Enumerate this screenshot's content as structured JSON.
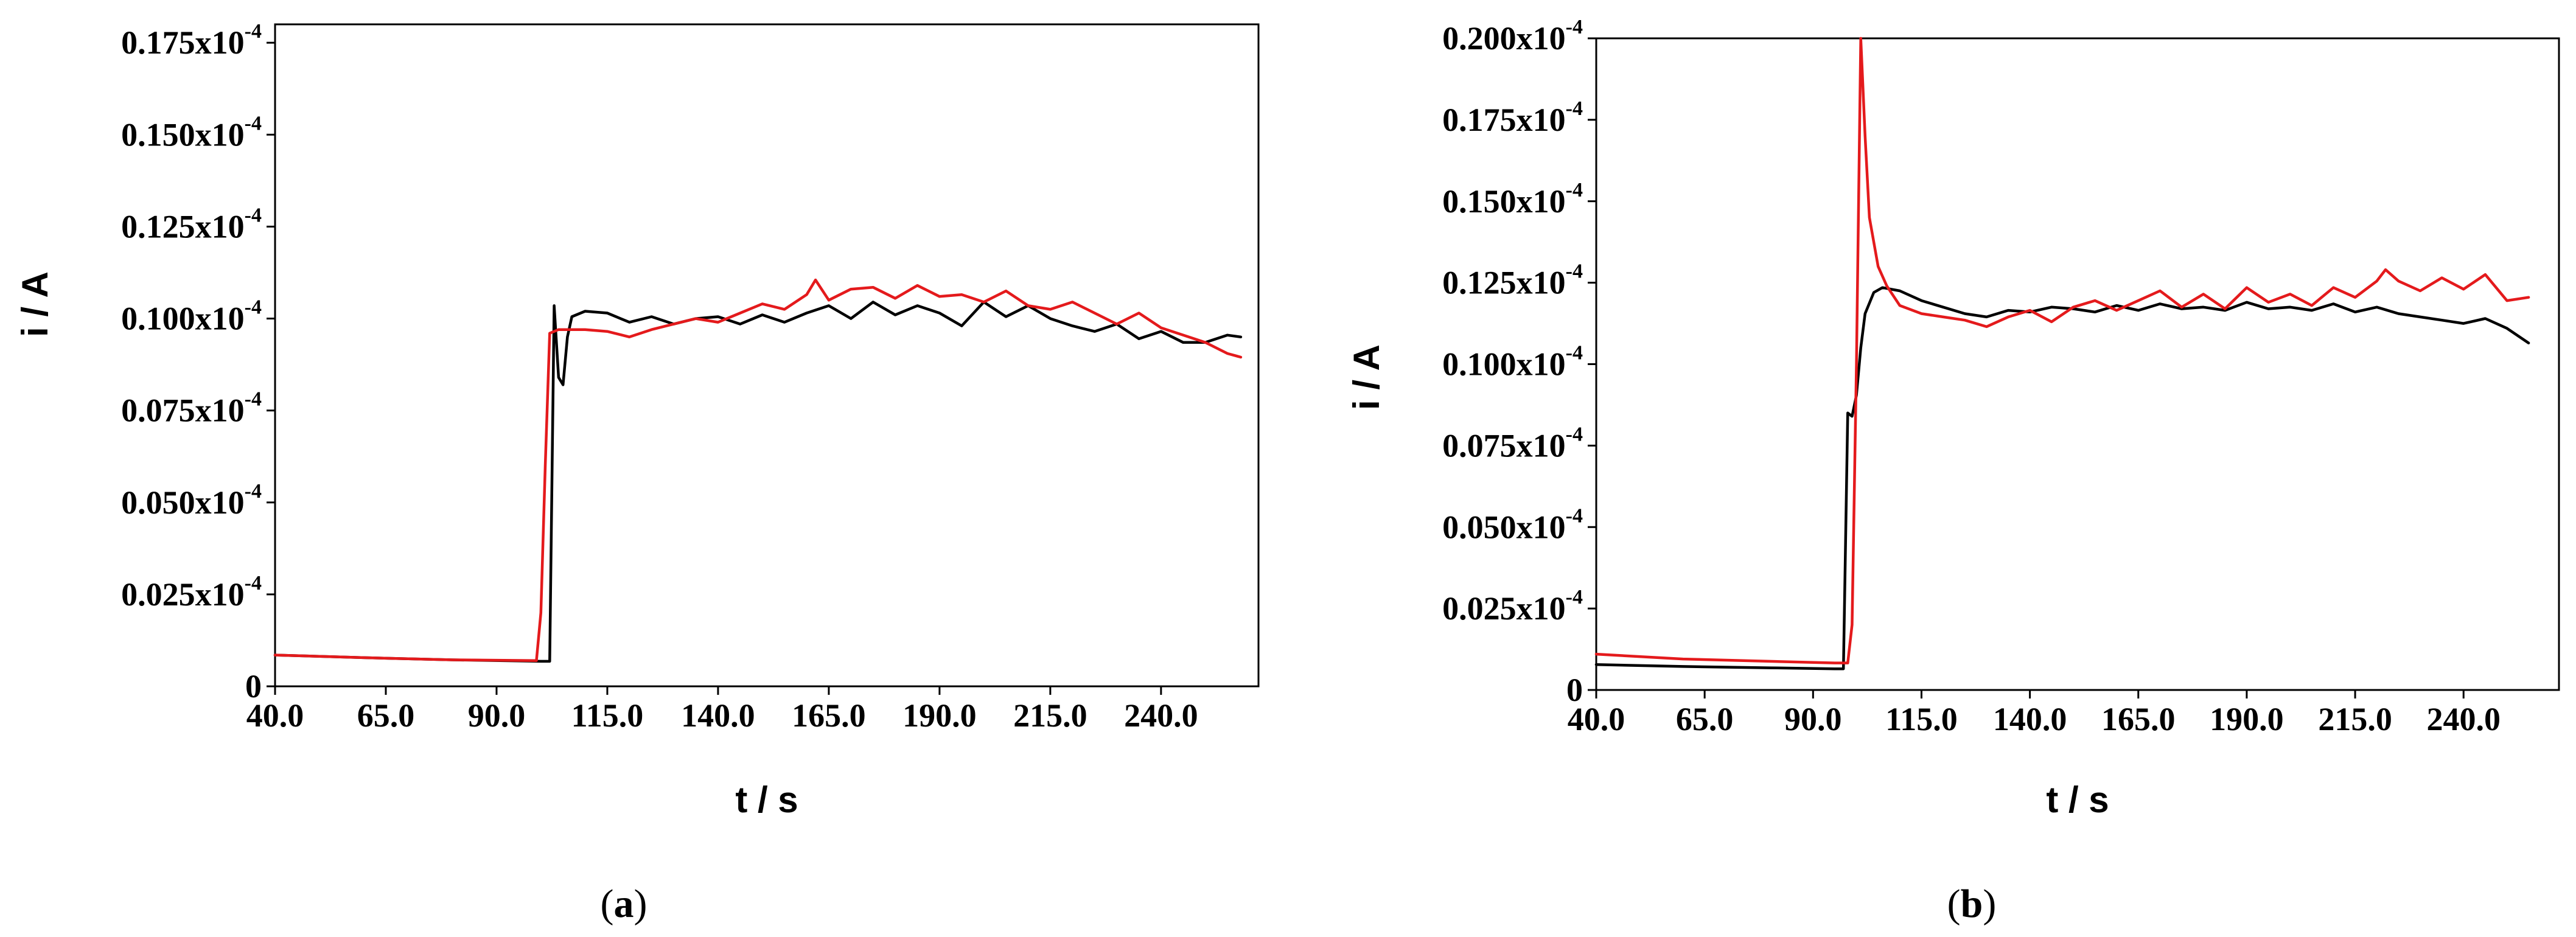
{
  "chart_data": [
    {
      "panel": "a",
      "panel_label": "(a)",
      "type": "line",
      "xlabel": "t / s",
      "ylabel": "i / A",
      "xlim": [
        40,
        262
      ],
      "ylim": [
        0,
        0.18
      ],
      "x_ticks": [
        40,
        65,
        90,
        115,
        140,
        165,
        190,
        215,
        240
      ],
      "x_tick_labels": [
        "40.0",
        "65.0",
        "90.0",
        "115.0",
        "140.0",
        "165.0",
        "190.0",
        "215.0",
        "240.0"
      ],
      "y_ticks": [
        0,
        0.025,
        0.05,
        0.075,
        0.1,
        0.125,
        0.15,
        0.175
      ],
      "y_tick_labels": [
        "0",
        "0.025x10",
        "0.050x10",
        "0.075x10",
        "0.100x10",
        "0.125x10",
        "0.150x10",
        "0.175x10"
      ],
      "y_tick_exponent": "-4",
      "grid": false,
      "series": [
        {
          "color": "#000000",
          "x": [
            40,
            60,
            80,
            100,
            102,
            103,
            104,
            105,
            106,
            107,
            110,
            115,
            120,
            125,
            130,
            135,
            140,
            145,
            150,
            155,
            160,
            165,
            170,
            175,
            180,
            185,
            190,
            195,
            200,
            205,
            210,
            215,
            220,
            225,
            230,
            235,
            240,
            245,
            250,
            255,
            258
          ],
          "y": [
            0.0085,
            0.0078,
            0.0072,
            0.0068,
            0.0068,
            0.1035,
            0.084,
            0.082,
            0.095,
            0.1005,
            0.102,
            0.1015,
            0.099,
            0.1005,
            0.0985,
            0.1,
            0.1005,
            0.0985,
            0.101,
            0.099,
            0.1015,
            0.1035,
            0.1,
            0.1045,
            0.101,
            0.1035,
            0.1015,
            0.098,
            0.1045,
            0.1005,
            0.1035,
            0.1,
            0.098,
            0.0965,
            0.0985,
            0.0945,
            0.0965,
            0.0935,
            0.0935,
            0.0955,
            0.095
          ]
        },
        {
          "color": "#e41a1c",
          "x": [
            40,
            60,
            80,
            99,
            100,
            101,
            102,
            104,
            110,
            115,
            120,
            125,
            130,
            135,
            140,
            145,
            150,
            155,
            160,
            162,
            165,
            170,
            175,
            180,
            185,
            190,
            195,
            200,
            205,
            210,
            215,
            220,
            225,
            230,
            235,
            240,
            245,
            250,
            255,
            258
          ],
          "y": [
            0.0085,
            0.0078,
            0.0072,
            0.007,
            0.02,
            0.06,
            0.096,
            0.097,
            0.097,
            0.0965,
            0.095,
            0.097,
            0.0985,
            0.1,
            0.099,
            0.1015,
            0.104,
            0.1025,
            0.1065,
            0.1105,
            0.105,
            0.108,
            0.1085,
            0.1055,
            0.109,
            0.106,
            0.1065,
            0.1045,
            0.1075,
            0.1035,
            0.1025,
            0.1045,
            0.1015,
            0.0985,
            0.1015,
            0.0975,
            0.0955,
            0.0935,
            0.0905,
            0.0895
          ]
        }
      ]
    },
    {
      "panel": "b",
      "panel_label": "(b)",
      "type": "line",
      "xlabel": "t / s",
      "ylabel": "i / A",
      "xlim": [
        40,
        262
      ],
      "ylim": [
        0,
        0.2
      ],
      "x_ticks": [
        40,
        65,
        90,
        115,
        140,
        165,
        190,
        215,
        240
      ],
      "x_tick_labels": [
        "40.0",
        "65.0",
        "90.0",
        "115.0",
        "140.0",
        "165.0",
        "190.0",
        "215.0",
        "240.0"
      ],
      "y_ticks": [
        0,
        0.025,
        0.05,
        0.075,
        0.1,
        0.125,
        0.15,
        0.175,
        0.2
      ],
      "y_tick_labels": [
        "0",
        "0.025x10",
        "0.050x10",
        "0.075x10",
        "0.100x10",
        "0.125x10",
        "0.150x10",
        "0.175x10",
        "0.200x10"
      ],
      "y_tick_exponent": "-4",
      "grid": false,
      "series": [
        {
          "color": "#000000",
          "x": [
            40,
            60,
            80,
            95,
            97,
            98,
            99,
            100,
            101,
            102,
            104,
            106,
            110,
            115,
            120,
            125,
            130,
            135,
            140,
            145,
            150,
            155,
            160,
            165,
            170,
            175,
            180,
            185,
            190,
            195,
            200,
            205,
            210,
            215,
            220,
            225,
            230,
            235,
            240,
            245,
            250,
            255
          ],
          "y": [
            0.0078,
            0.0072,
            0.0068,
            0.0065,
            0.0065,
            0.085,
            0.084,
            0.0905,
            0.105,
            0.1155,
            0.122,
            0.1235,
            0.1225,
            0.1195,
            0.1175,
            0.1155,
            0.1145,
            0.1165,
            0.116,
            0.1175,
            0.117,
            0.116,
            0.118,
            0.1165,
            0.1185,
            0.117,
            0.1175,
            0.1165,
            0.119,
            0.117,
            0.1175,
            0.1165,
            0.1185,
            0.116,
            0.1175,
            0.1155,
            0.1145,
            0.1135,
            0.1125,
            0.114,
            0.111,
            0.1065
          ]
        },
        {
          "color": "#e41a1c",
          "x": [
            40,
            60,
            80,
            95,
            98,
            99,
            100,
            101,
            102,
            103,
            105,
            107,
            110,
            115,
            120,
            125,
            130,
            135,
            140,
            145,
            150,
            155,
            160,
            165,
            170,
            175,
            180,
            185,
            190,
            195,
            200,
            205,
            210,
            215,
            220,
            222,
            225,
            230,
            235,
            240,
            245,
            250,
            255
          ],
          "y": [
            0.011,
            0.0095,
            0.0088,
            0.0083,
            0.0083,
            0.02,
            0.1,
            0.2,
            0.17,
            0.145,
            0.13,
            0.124,
            0.118,
            0.1155,
            0.1145,
            0.1135,
            0.1115,
            0.1145,
            0.1165,
            0.113,
            0.1175,
            0.1195,
            0.1165,
            0.1195,
            0.1225,
            0.1175,
            0.1215,
            0.117,
            0.1235,
            0.119,
            0.1215,
            0.118,
            0.1235,
            0.1205,
            0.1255,
            0.129,
            0.1255,
            0.1225,
            0.1265,
            0.123,
            0.1275,
            0.1195,
            0.1205
          ]
        }
      ]
    }
  ]
}
